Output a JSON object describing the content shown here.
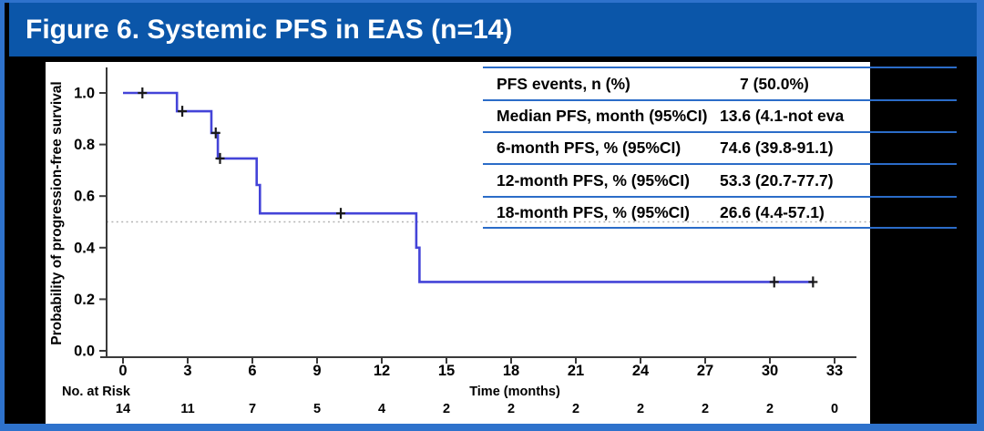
{
  "title": "Figure 6. Systemic PFS in EAS (n=14)",
  "colors": {
    "title_bar": "#0b56a9",
    "border_blue": "#2e72cc",
    "table_line": "#2b6cc8",
    "curve": "#4444d8",
    "censor": "#1a1a1a",
    "reference_dotted": "#b3b3b3",
    "axis": "#3a3a3a",
    "panel_bg": "#ffffff",
    "slide_bg": "#000000",
    "title_text": "#ffffff"
  },
  "stats_table": {
    "rows": [
      {
        "label": "PFS events, n (%)",
        "value": "7 (50.0%)",
        "value_indent": 22
      },
      {
        "label": "Median PFS, month (95%CI)",
        "value": "13.6 (4.1-not eva",
        "value_indent": 0
      },
      {
        "label": "6-month PFS, % (95%CI)",
        "value": "74.6 (39.8-91.1)",
        "value_indent": 0
      },
      {
        "label": "12-month PFS, % (95%CI)",
        "value": "53.3 (20.7-77.7)",
        "value_indent": 0
      },
      {
        "label": "18-month PFS, % (95%CI)",
        "value": "26.6 (4.4-57.1)",
        "value_indent": 0
      }
    ]
  },
  "chart_data": {
    "type": "line",
    "subtype": "kaplan-meier-step",
    "title": "Systemic PFS in EAS",
    "xlabel": "Time (months)",
    "ylabel": "Probability of progression-free survival",
    "xlim": [
      0,
      33
    ],
    "ylim": [
      0.0,
      1.0
    ],
    "x_ticks": [
      0,
      3,
      6,
      9,
      12,
      15,
      18,
      21,
      24,
      27,
      30,
      33
    ],
    "y_tick_labels": [
      "1.0",
      "0.8",
      "0.6",
      "0.4",
      "0.2",
      "0.0"
    ],
    "grid": false,
    "legend_position": "none",
    "reference_line_y": 0.5,
    "series": [
      {
        "name": "Systemic PFS",
        "step_points": [
          [
            0,
            1.0
          ],
          [
            2.5,
            1.0
          ],
          [
            2.5,
            0.929
          ],
          [
            4.1,
            0.929
          ],
          [
            4.1,
            0.845
          ],
          [
            4.4,
            0.845
          ],
          [
            4.4,
            0.746
          ],
          [
            6.2,
            0.746
          ],
          [
            6.2,
            0.643
          ],
          [
            6.35,
            0.643
          ],
          [
            6.35,
            0.533
          ],
          [
            13.6,
            0.533
          ],
          [
            13.6,
            0.4
          ],
          [
            13.75,
            0.4
          ],
          [
            13.75,
            0.267
          ],
          [
            32,
            0.267
          ]
        ],
        "censor_marks": [
          [
            0.9,
            1.0
          ],
          [
            2.75,
            0.929
          ],
          [
            4.3,
            0.845
          ],
          [
            4.5,
            0.746
          ],
          [
            10.1,
            0.533
          ],
          [
            30.2,
            0.267
          ],
          [
            32,
            0.267
          ]
        ]
      }
    ],
    "risk_table": {
      "label": "No. at Risk",
      "values": [
        "14",
        "11",
        "7",
        "5",
        "4",
        "2",
        "2",
        "2",
        "2",
        "2",
        "2",
        "0"
      ]
    }
  }
}
